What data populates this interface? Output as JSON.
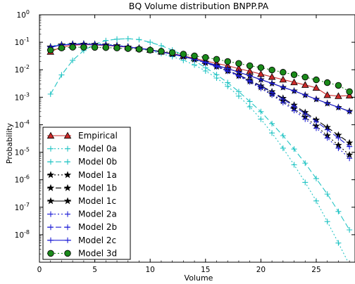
{
  "chart_data": {
    "type": "line",
    "title": "BQ Volume distribution BNPP.PA",
    "xlabel": "Volume",
    "ylabel": "Probability",
    "xlim": [
      0,
      28.5
    ],
    "ylim": [
      1e-09,
      1
    ],
    "yscale": "log",
    "grid": false,
    "legend_position": "lower-left",
    "x_ticks": [
      {
        "value": 0,
        "label": "0"
      },
      {
        "value": 5,
        "label": "5"
      },
      {
        "value": 10,
        "label": "10"
      },
      {
        "value": 15,
        "label": "15"
      },
      {
        "value": 20,
        "label": "20"
      },
      {
        "value": 25,
        "label": "25"
      }
    ],
    "y_ticks": [
      {
        "value": 1,
        "base": "10",
        "exp": "0"
      },
      {
        "value": 0.1,
        "base": "10",
        "exp": "-1"
      },
      {
        "value": 0.01,
        "base": "10",
        "exp": "-2"
      },
      {
        "value": 0.001,
        "base": "10",
        "exp": "-3"
      },
      {
        "value": 0.0001,
        "base": "10",
        "exp": "-4"
      },
      {
        "value": 1e-05,
        "base": "10",
        "exp": "-5"
      },
      {
        "value": 1e-06,
        "base": "10",
        "exp": "-6"
      },
      {
        "value": 1e-07,
        "base": "10",
        "exp": "-7"
      },
      {
        "value": 1e-08,
        "base": "10",
        "exp": "-8"
      }
    ],
    "series": [
      {
        "name": "Empirical",
        "color": "#cc2a2a",
        "marker": "triangle",
        "dash": "",
        "x": [
          1,
          2,
          3,
          4,
          5,
          6,
          7,
          8,
          9,
          10,
          11,
          12,
          13,
          14,
          15,
          16,
          17,
          18,
          19,
          20,
          21,
          22,
          23,
          24,
          25,
          26,
          27,
          28
        ],
        "y": [
          0.045,
          0.068,
          0.078,
          0.082,
          0.08,
          0.077,
          0.072,
          0.066,
          0.06,
          0.053,
          0.046,
          0.039,
          0.032,
          0.026,
          0.021,
          0.017,
          0.014,
          0.011,
          0.0088,
          0.007,
          0.0055,
          0.0044,
          0.0035,
          0.0028,
          0.0022,
          0.0012,
          0.0011,
          0.00115
        ]
      },
      {
        "name": "Model 0a",
        "color": "#22c4c4",
        "marker": "plus",
        "dash": "2,3",
        "x": [
          1,
          2,
          3,
          4,
          5,
          6,
          7,
          8,
          9,
          10,
          11,
          12,
          13,
          14,
          15,
          16,
          17,
          18,
          19,
          20,
          21,
          22,
          23,
          24,
          25,
          26,
          27,
          28
        ],
        "y": [
          0.072,
          0.085,
          0.09,
          0.092,
          0.09,
          0.085,
          0.078,
          0.069,
          0.059,
          0.049,
          0.039,
          0.03,
          0.022,
          0.015,
          0.009,
          0.005,
          0.0025,
          0.0011,
          0.00045,
          0.00016,
          5e-05,
          1.4e-05,
          3.5e-06,
          8e-07,
          1.7e-07,
          3e-08,
          5e-09,
          8e-10
        ]
      },
      {
        "name": "Model 0b",
        "color": "#22c4c4",
        "marker": "plus",
        "dash": "8,4",
        "x": [
          1,
          2,
          3,
          4,
          5,
          6,
          7,
          8,
          9,
          10,
          11,
          12,
          13,
          14,
          15,
          16,
          17,
          18,
          19,
          20,
          21,
          22,
          23,
          24,
          25,
          26,
          27,
          28
        ],
        "y": [
          0.0013,
          0.0065,
          0.022,
          0.05,
          0.085,
          0.115,
          0.13,
          0.135,
          0.125,
          0.1,
          0.075,
          0.052,
          0.034,
          0.021,
          0.012,
          0.0066,
          0.0034,
          0.0016,
          0.0007,
          0.0003,
          0.00011,
          4e-05,
          1.3e-05,
          4e-06,
          1.1e-06,
          3e-07,
          7e-08,
          1.5e-08
        ]
      },
      {
        "name": "Model 1a",
        "color": "#000000",
        "marker": "star",
        "dash": "2,3",
        "x": [
          1,
          2,
          3,
          4,
          5,
          6,
          7,
          8,
          9,
          10,
          11,
          12,
          13,
          14,
          15,
          16,
          17,
          18,
          19,
          20,
          21,
          22,
          23,
          24,
          25,
          26,
          27,
          28
        ],
        "y": [
          0.066,
          0.08,
          0.085,
          0.086,
          0.084,
          0.08,
          0.075,
          0.068,
          0.061,
          0.053,
          0.045,
          0.038,
          0.031,
          0.024,
          0.018,
          0.013,
          0.009,
          0.006,
          0.0038,
          0.0023,
          0.0013,
          0.00072,
          0.00038,
          0.00019,
          9e-05,
          4e-05,
          1.8e-05,
          8e-06
        ]
      },
      {
        "name": "Model 1b",
        "color": "#000000",
        "marker": "star",
        "dash": "8,4",
        "x": [
          1,
          2,
          3,
          4,
          5,
          6,
          7,
          8,
          9,
          10,
          11,
          12,
          13,
          14,
          15,
          16,
          17,
          18,
          19,
          20,
          21,
          22,
          23,
          24,
          25,
          26,
          27,
          28
        ],
        "y": [
          0.066,
          0.08,
          0.085,
          0.086,
          0.084,
          0.08,
          0.075,
          0.068,
          0.061,
          0.053,
          0.045,
          0.038,
          0.031,
          0.024,
          0.018,
          0.0135,
          0.0095,
          0.0064,
          0.0042,
          0.0026,
          0.0016,
          0.00092,
          0.00052,
          0.00028,
          0.00015,
          8e-05,
          4.2e-05,
          2.2e-05
        ]
      },
      {
        "name": "Model 1c",
        "color": "#000000",
        "marker": "star",
        "dash": "",
        "x": [
          1,
          2,
          3,
          4,
          5,
          6,
          7,
          8,
          9,
          10,
          11,
          12,
          13,
          14,
          15,
          16,
          17,
          18,
          19,
          20,
          21,
          22,
          23,
          24,
          25,
          26,
          27,
          28
        ],
        "y": [
          0.068,
          0.08,
          0.084,
          0.085,
          0.083,
          0.079,
          0.074,
          0.067,
          0.06,
          0.052,
          0.044,
          0.037,
          0.03,
          0.024,
          0.019,
          0.0145,
          0.011,
          0.0082,
          0.006,
          0.0044,
          0.0032,
          0.0023,
          0.0017,
          0.0012,
          0.00085,
          0.0006,
          0.00043,
          0.00031
        ]
      },
      {
        "name": "Model 2a",
        "color": "#1f1fd6",
        "marker": "plus",
        "dash": "2,3",
        "x": [
          1,
          2,
          3,
          4,
          5,
          6,
          7,
          8,
          9,
          10,
          11,
          12,
          13,
          14,
          15,
          16,
          17,
          18,
          19,
          20,
          21,
          22,
          23,
          24,
          25,
          26,
          27,
          28
        ],
        "y": [
          0.066,
          0.08,
          0.085,
          0.086,
          0.084,
          0.08,
          0.075,
          0.068,
          0.061,
          0.053,
          0.045,
          0.038,
          0.031,
          0.024,
          0.018,
          0.0128,
          0.0088,
          0.0058,
          0.0036,
          0.0021,
          0.0012,
          0.00064,
          0.00033,
          0.00016,
          7.5e-05,
          3.3e-05,
          1.4e-05,
          6e-06
        ]
      },
      {
        "name": "Model 2b",
        "color": "#1f1fd6",
        "marker": "plus",
        "dash": "8,4",
        "x": [
          1,
          2,
          3,
          4,
          5,
          6,
          7,
          8,
          9,
          10,
          11,
          12,
          13,
          14,
          15,
          16,
          17,
          18,
          19,
          20,
          21,
          22,
          23,
          24,
          25,
          26,
          27,
          28
        ],
        "y": [
          0.066,
          0.08,
          0.085,
          0.086,
          0.084,
          0.08,
          0.075,
          0.068,
          0.061,
          0.053,
          0.045,
          0.038,
          0.031,
          0.024,
          0.018,
          0.0132,
          0.0092,
          0.0062,
          0.004,
          0.0025,
          0.0015,
          0.00085,
          0.00047,
          0.00025,
          0.00013,
          6.6e-05,
          3.3e-05,
          1.6e-05
        ]
      },
      {
        "name": "Model 2c",
        "color": "#1f1fd6",
        "marker": "plus",
        "dash": "",
        "x": [
          1,
          2,
          3,
          4,
          5,
          6,
          7,
          8,
          9,
          10,
          11,
          12,
          13,
          14,
          15,
          16,
          17,
          18,
          19,
          20,
          21,
          22,
          23,
          24,
          25,
          26,
          27,
          28
        ],
        "y": [
          0.068,
          0.08,
          0.084,
          0.085,
          0.083,
          0.079,
          0.074,
          0.067,
          0.06,
          0.052,
          0.044,
          0.037,
          0.03,
          0.024,
          0.019,
          0.0145,
          0.011,
          0.0082,
          0.006,
          0.0044,
          0.0032,
          0.0023,
          0.0017,
          0.0012,
          0.00085,
          0.0006,
          0.00043,
          0.0003
        ]
      },
      {
        "name": "Model 3d",
        "color": "#1a8a1a",
        "marker": "circle",
        "dash": "2,3",
        "x": [
          1,
          2,
          3,
          4,
          5,
          6,
          7,
          8,
          9,
          10,
          11,
          12,
          13,
          14,
          15,
          16,
          17,
          18,
          19,
          20,
          21,
          22,
          23,
          24,
          25,
          26,
          27,
          28
        ],
        "y": [
          0.052,
          0.062,
          0.066,
          0.066,
          0.065,
          0.064,
          0.062,
          0.059,
          0.056,
          0.052,
          0.047,
          0.042,
          0.037,
          0.032,
          0.028,
          0.024,
          0.02,
          0.017,
          0.014,
          0.012,
          0.0098,
          0.0081,
          0.0066,
          0.0054,
          0.0043,
          0.0034,
          0.0027,
          0.0016
        ]
      }
    ]
  }
}
